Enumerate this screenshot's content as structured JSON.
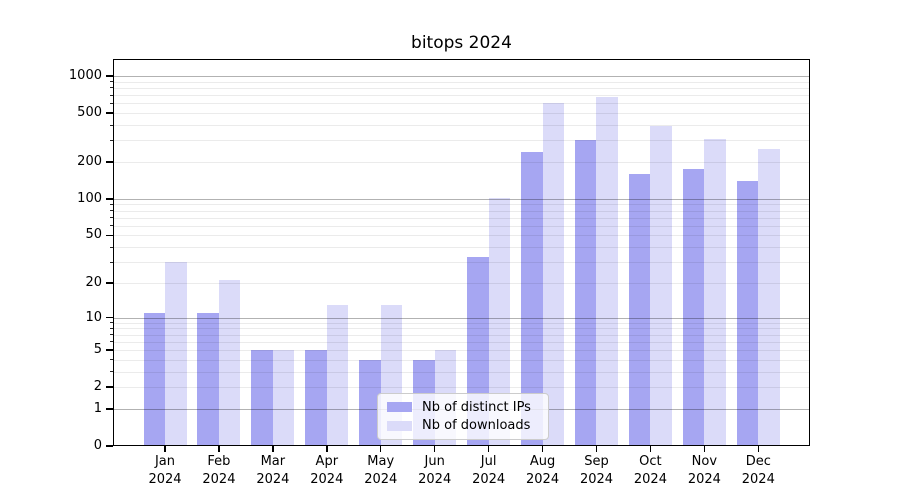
{
  "title": "bitops 2024",
  "chart_data": {
    "type": "bar",
    "title": "bitops 2024",
    "categories": [
      "Jan 2024",
      "Feb 2024",
      "Mar 2024",
      "Apr 2024",
      "May 2024",
      "Jun 2024",
      "Jul 2024",
      "Aug 2024",
      "Sep 2024",
      "Oct 2024",
      "Nov 2024",
      "Dec 2024"
    ],
    "months": [
      "Jan",
      "Feb",
      "Mar",
      "Apr",
      "May",
      "Jun",
      "Jul",
      "Aug",
      "Sep",
      "Oct",
      "Nov",
      "Dec"
    ],
    "year": "2024",
    "series": [
      {
        "name": "Nb of distinct IPs",
        "color": "#a6a6f2",
        "values": [
          11,
          11,
          5,
          5,
          4,
          4,
          33,
          240,
          300,
          160,
          175,
          140
        ]
      },
      {
        "name": "Nb of downloads",
        "color": "#dbdbf9",
        "values": [
          30,
          21,
          5,
          13,
          13,
          5,
          102,
          600,
          670,
          390,
          310,
          255
        ]
      }
    ],
    "xlabel": "",
    "ylabel": "",
    "yscale": "log1p",
    "ylim": [
      0,
      1375
    ],
    "yticks": [
      0,
      1,
      2,
      5,
      10,
      20,
      50,
      100,
      200,
      500,
      1000
    ],
    "major_gridlines": [
      1,
      10,
      100,
      1000
    ],
    "minor_gridlines": [
      2,
      3,
      4,
      5,
      6,
      7,
      8,
      9,
      20,
      30,
      40,
      50,
      60,
      70,
      80,
      90,
      200,
      300,
      400,
      500,
      600,
      700,
      800,
      900
    ],
    "grid": true,
    "legend_position": "lower center"
  },
  "colors": {
    "spine": "#000000",
    "major_grid": "rgba(0,0,0,0.30)",
    "minor_grid": "rgba(0,0,0,0.08)"
  }
}
